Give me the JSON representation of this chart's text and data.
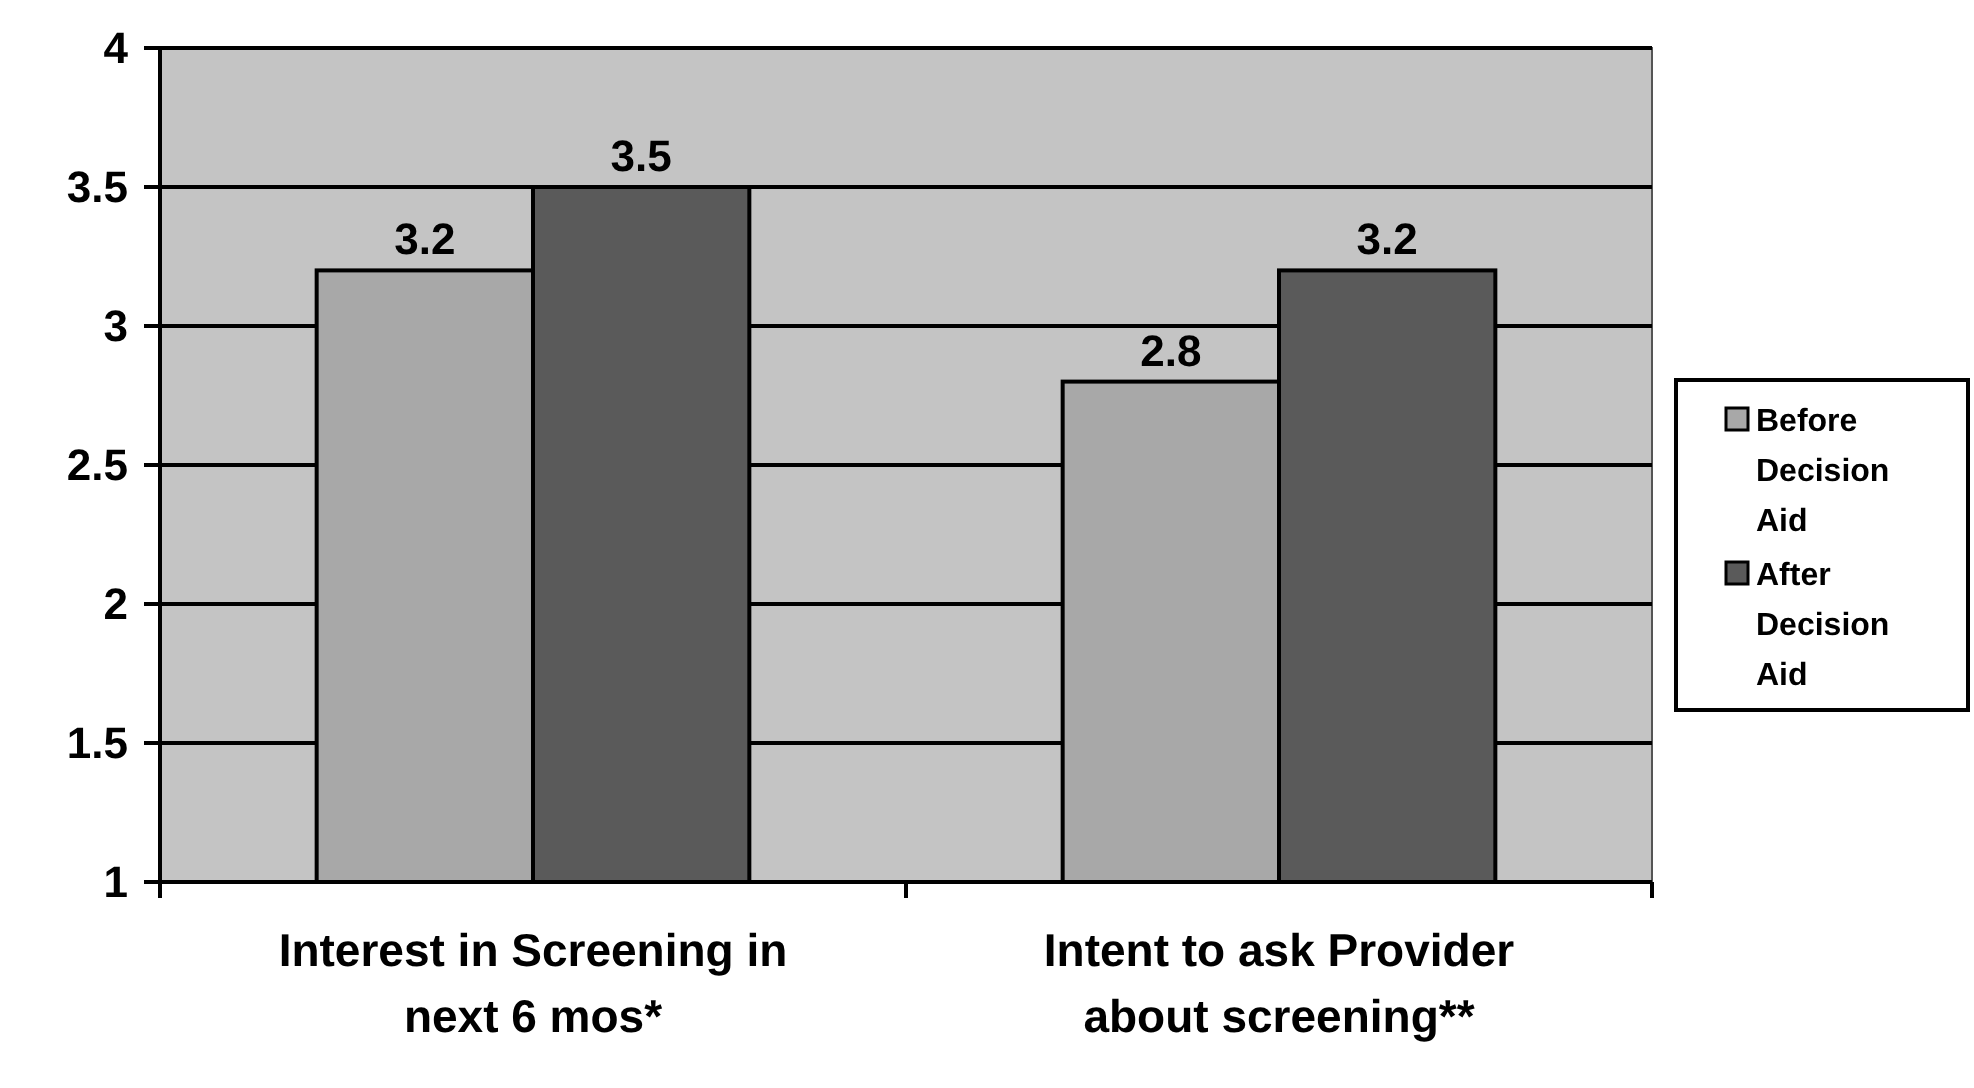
{
  "chart_data": {
    "type": "bar",
    "categories": [
      "Interest in Screening in next 6 mos*",
      "Intent to ask Provider about screening**"
    ],
    "series": [
      {
        "name": "Before Decision Aid",
        "color": "#a8a8a8",
        "values": [
          3.2,
          2.8
        ]
      },
      {
        "name": "After Decision Aid",
        "color": "#5a5a5a",
        "values": [
          3.5,
          3.2
        ]
      }
    ],
    "ylim": [
      1,
      4
    ],
    "yticks": [
      1,
      1.5,
      2,
      2.5,
      3,
      3.5,
      4
    ],
    "grid": "y",
    "legend": "right",
    "data_labels": true
  }
}
